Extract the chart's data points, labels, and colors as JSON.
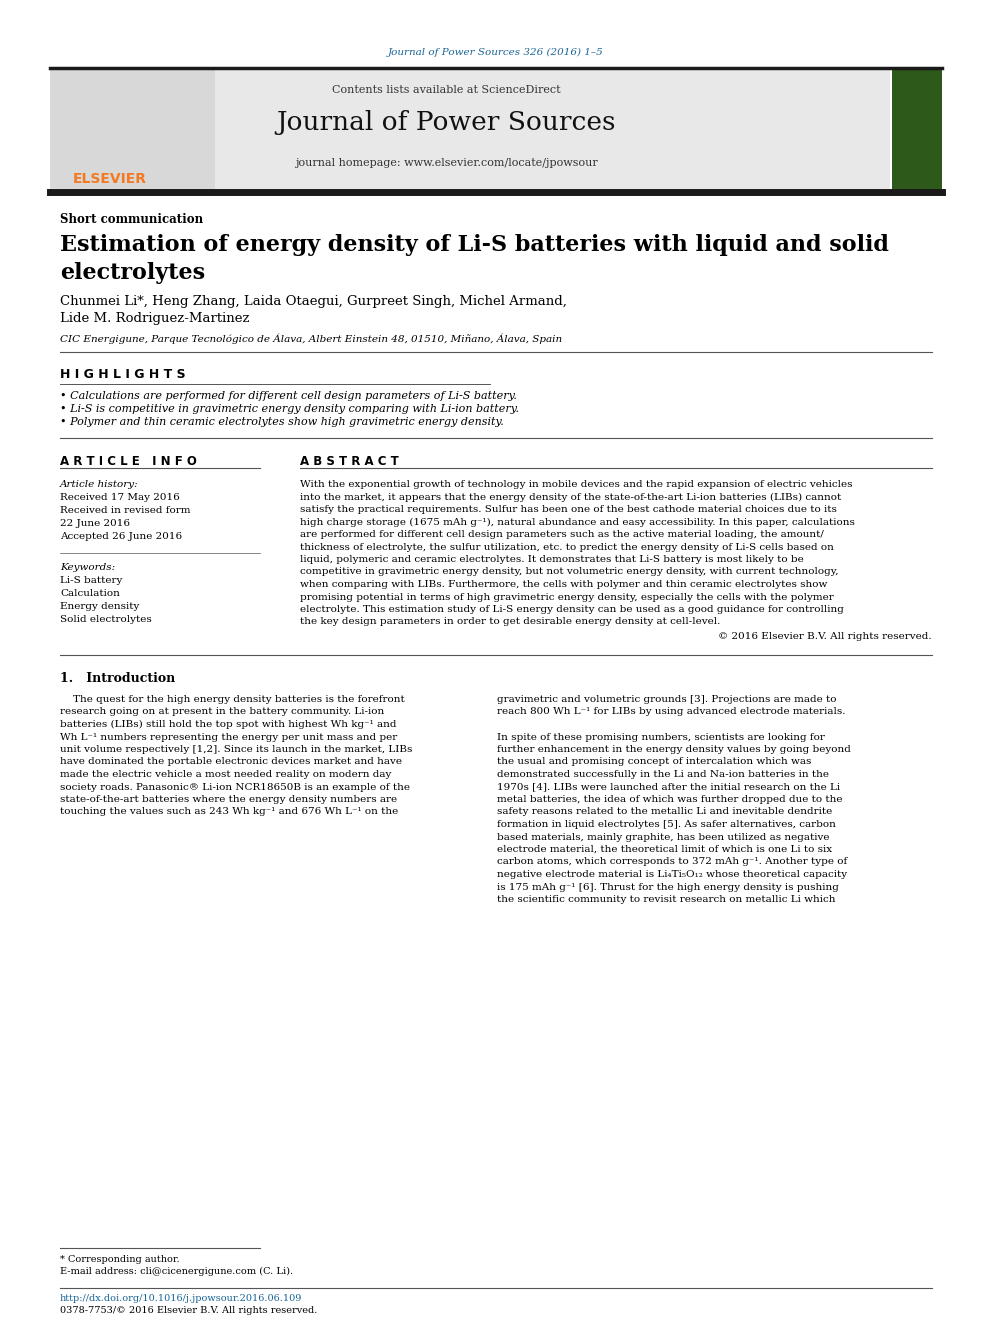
{
  "page_bg": "#ffffff",
  "header_url_text": "Journal of Power Sources 326 (2016) 1–5",
  "header_url_color": "#1a6496",
  "journal_header_bg": "#e8e8e8",
  "journal_name": "Journal of Power Sources",
  "contents_text": "Contents lists available at ",
  "sciencedirect_text": "ScienceDirect",
  "sciencedirect_color": "#1a8a5a",
  "homepage_text": "journal homepage: ",
  "homepage_url": "www.elsevier.com/locate/jpowsour",
  "homepage_url_color": "#1a6496",
  "elsevier_color": "#f47920",
  "section_label": "Short communication",
  "paper_title_line1": "Estimation of energy density of Li-S batteries with liquid and solid",
  "paper_title_line2": "electrolytes",
  "authors_line1": "Chunmei Li*, Heng Zhang, Laida Otaegui, Gurpreet Singh, Michel Armand,",
  "authors_line2": "Lide M. Rodriguez-Martinez",
  "affiliation": "CIC Energigune, Parque Tecnológico de Álava, Albert Einstein 48, 01510, Miñano, Álava, Spain",
  "highlights_title": "H I G H L I G H T S",
  "highlight1": "• Calculations are performed for different cell design parameters of Li-S battery.",
  "highlight2": "• Li-S is competitive in gravimetric energy density comparing with Li-ion battery.",
  "highlight3": "• Polymer and thin ceramic electrolytes show high gravimetric energy density.",
  "article_info_title": "A R T I C L E   I N F O",
  "abstract_title": "A B S T R A C T",
  "article_history_label": "Article history:",
  "received": "Received 17 May 2016",
  "received_revised": "Received in revised form",
  "date_revised": "22 June 2016",
  "accepted": "Accepted 26 June 2016",
  "keywords_label": "Keywords:",
  "keyword1": "Li-S battery",
  "keyword2": "Calculation",
  "keyword3": "Energy density",
  "keyword4": "Solid electrolytes",
  "copyright": "© 2016 Elsevier B.V. All rights reserved.",
  "intro_title": "1.   Introduction",
  "footnote_corresponding": "* Corresponding author.",
  "footnote_email": "E-mail address: cli@cicenergigune.com (C. Li).",
  "footnote_doi": "http://dx.doi.org/10.1016/j.jpowsour.2016.06.109",
  "footnote_issn": "0378-7753/© 2016 Elsevier B.V. All rights reserved.",
  "thick_line_color": "#1a1a1a",
  "thin_line_color": "#555555",
  "text_color": "#000000",
  "abstract_lines": [
    "With the exponential growth of technology in mobile devices and the rapid expansion of electric vehicles",
    "into the market, it appears that the energy density of the state-of-the-art Li-ion batteries (LIBs) cannot",
    "satisfy the practical requirements. Sulfur has been one of the best cathode material choices due to its",
    "high charge storage (1675 mAh g⁻¹), natural abundance and easy accessibility. In this paper, calculations",
    "are performed for different cell design parameters such as the active material loading, the amount/",
    "thickness of electrolyte, the sulfur utilization, etc. to predict the energy density of Li-S cells based on",
    "liquid, polymeric and ceramic electrolytes. It demonstrates that Li-S battery is most likely to be",
    "competitive in gravimetric energy density, but not volumetric energy density, with current technology,",
    "when comparing with LIBs. Furthermore, the cells with polymer and thin ceramic electrolytes show",
    "promising potential in terms of high gravimetric energy density, especially the cells with the polymer",
    "electrolyte. This estimation study of Li-S energy density can be used as a good guidance for controlling",
    "the key design parameters in order to get desirable energy density at cell-level."
  ],
  "intro_col1_lines": [
    "    The quest for the high energy density batteries is the forefront",
    "research going on at present in the battery community. Li-ion",
    "batteries (LIBs) still hold the top spot with highest Wh kg⁻¹ and",
    "Wh L⁻¹ numbers representing the energy per unit mass and per",
    "unit volume respectively [1,2]. Since its launch in the market, LIBs",
    "have dominated the portable electronic devices market and have",
    "made the electric vehicle a most needed reality on modern day",
    "society roads. Panasonic® Li-ion NCR18650B is an example of the",
    "state-of-the-art batteries where the energy density numbers are",
    "touching the values such as 243 Wh kg⁻¹ and 676 Wh L⁻¹ on the"
  ],
  "intro_col2_lines": [
    "gravimetric and volumetric grounds [3]. Projections are made to",
    "reach 800 Wh L⁻¹ for LIBs by using advanced electrode materials.",
    "",
    "In spite of these promising numbers, scientists are looking for",
    "further enhancement in the energy density values by going beyond",
    "the usual and promising concept of intercalation which was",
    "demonstrated successfully in the Li and Na-ion batteries in the",
    "1970s [4]. LIBs were launched after the initial research on the Li",
    "metal batteries, the idea of which was further dropped due to the",
    "safety reasons related to the metallic Li and inevitable dendrite",
    "formation in liquid electrolytes [5]. As safer alternatives, carbon",
    "based materials, mainly graphite, has been utilized as negative",
    "electrode material, the theoretical limit of which is one Li to six",
    "carbon atoms, which corresponds to 372 mAh g⁻¹. Another type of",
    "negative electrode material is Li₄Ti₅O₁₂ whose theoretical capacity",
    "is 175 mAh g⁻¹ [6]. Thrust for the high energy density is pushing",
    "the scientific community to revisit research on metallic Li which"
  ]
}
